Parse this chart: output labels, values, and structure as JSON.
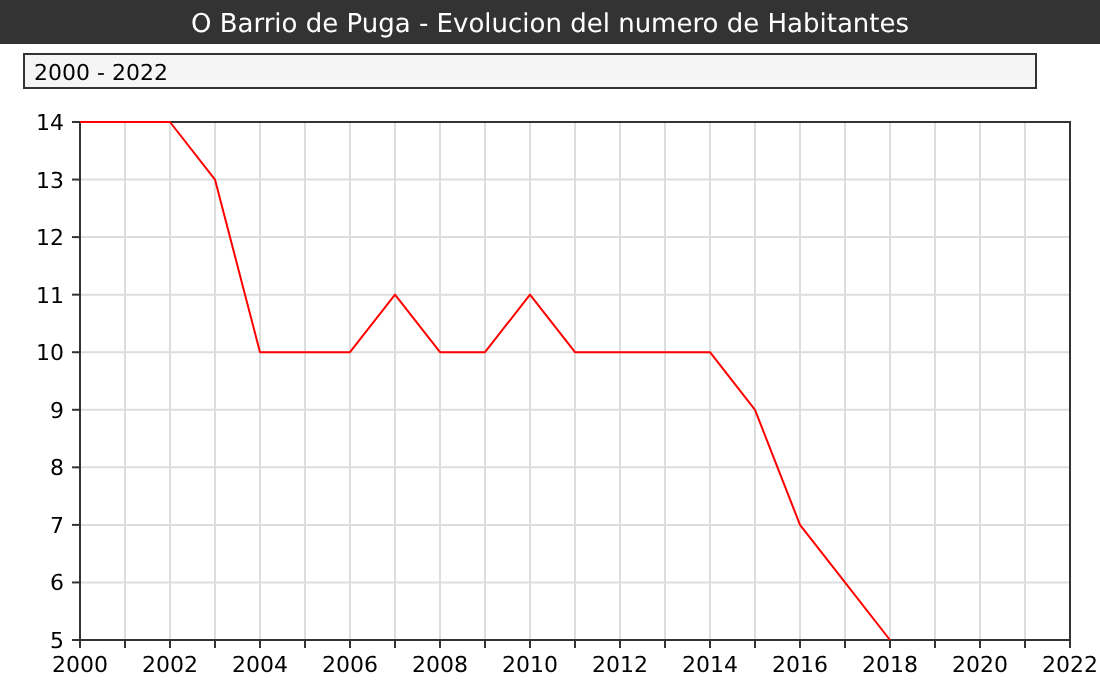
{
  "chart_data": {
    "type": "line",
    "title": "O Barrio de Puga - Evolucion del numero de Habitantes",
    "subtitle": "2000 - 2022",
    "x": [
      2000,
      2001,
      2002,
      2003,
      2004,
      2005,
      2006,
      2007,
      2008,
      2009,
      2010,
      2011,
      2012,
      2013,
      2014,
      2015,
      2016,
      2017,
      2018
    ],
    "series": [
      {
        "color": "#ff0000",
        "values": [
          14,
          14,
          14,
          13,
          10,
          10,
          10,
          11,
          10,
          10,
          11,
          10,
          10,
          10,
          10,
          9,
          7,
          6,
          5
        ]
      }
    ],
    "xlim": [
      2000,
      2022
    ],
    "xticks": [
      2000,
      {
        "value": 2001,
        "label": null
      },
      2002,
      {
        "value": 2003,
        "label": null
      },
      2004,
      {
        "value": 2005,
        "label": null
      },
      2006,
      {
        "value": 2007,
        "label": null
      },
      2008,
      {
        "value": 2009,
        "label": null
      },
      2010,
      {
        "value": 2011,
        "label": null
      },
      2012,
      {
        "value": 2013,
        "label": null
      },
      2014,
      {
        "value": 2015,
        "label": null
      },
      2016,
      {
        "value": 2017,
        "label": null
      },
      2018,
      {
        "value": 2019,
        "label": null
      },
      2020,
      {
        "value": 2021,
        "label": null
      },
      2022
    ],
    "ylim": [
      5,
      14
    ],
    "yticks": [
      5,
      6,
      7,
      8,
      9,
      10,
      11,
      12,
      13,
      14
    ],
    "grid": true,
    "marker": "none",
    "line_style": "solid"
  }
}
